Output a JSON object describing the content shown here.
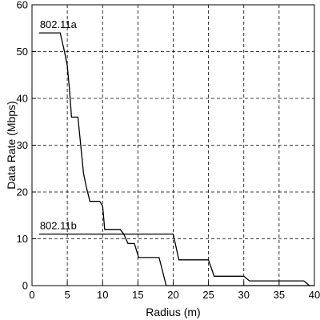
{
  "chart_data": {
    "type": "line",
    "title": "",
    "xlabel": "Radius (m)",
    "ylabel": "Data Rate (Mbps)",
    "xlim": [
      0,
      40
    ],
    "ylim": [
      0,
      60
    ],
    "xticks": [
      0,
      5,
      10,
      15,
      20,
      25,
      30,
      35,
      40
    ],
    "yticks": [
      0,
      10,
      20,
      30,
      40,
      50,
      60
    ],
    "grid": true,
    "grid_style": "dashed",
    "line_color": "#000000",
    "series": [
      {
        "name": "802.11a",
        "x": [
          1,
          4,
          4.6,
          5,
          5.3,
          5.6,
          6.0,
          6.5,
          6.9,
          7.3,
          7.7,
          8.2,
          8.6,
          9.0,
          9.6,
          10.0,
          10.3,
          10.9,
          12.5,
          13.0,
          13.6,
          14.5,
          15.1,
          17.5,
          18.0,
          18.5,
          19.0,
          40
        ],
        "y": [
          54,
          54,
          50,
          47,
          42,
          36,
          36,
          36,
          30,
          24,
          21,
          18,
          18,
          18,
          18,
          17,
          12,
          12,
          12,
          11,
          9,
          9,
          6,
          6,
          6,
          3,
          0,
          0
        ]
      },
      {
        "name": "802.11b",
        "x": [
          1,
          20,
          20.8,
          25,
          25.8,
          30,
          30.8,
          38.5,
          39.3
        ],
        "y": [
          11,
          11,
          5.5,
          5.5,
          2,
          2,
          1,
          1,
          0
        ]
      }
    ],
    "annotations": [
      {
        "text": "802.11a",
        "x": 1,
        "y": 54,
        "series": "802.11a"
      },
      {
        "text": "802.11b",
        "x": 1,
        "y": 11,
        "series": "802.11b"
      }
    ]
  }
}
